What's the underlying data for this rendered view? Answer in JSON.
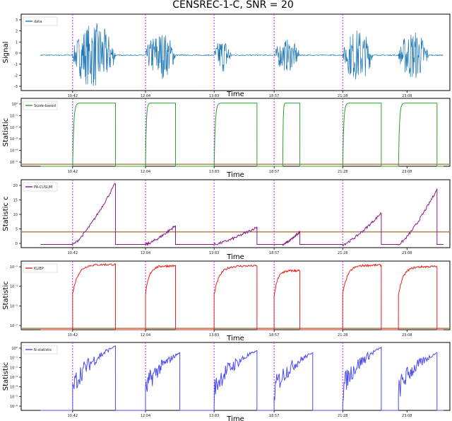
{
  "figure": {
    "title": "CENSREC-1-C, SNR = 20"
  },
  "colors": {
    "signal": "#1f77b4",
    "score": "#2ca02c",
    "cusum": "#8b1a89",
    "kliep": "#e8211c",
    "stat": "#4b4bf0",
    "threshold": "#b08a5a",
    "changepoint": "#b026ff"
  },
  "chart_data": [
    {
      "type": "line",
      "xlabel": "Time",
      "ylabel": "Signal",
      "xticks": [
        "10:42",
        "12:04",
        "13:83",
        "18:57",
        "21:28",
        "23:08"
      ],
      "yticks": [
        "3",
        "2",
        "1",
        "0",
        "-1",
        "-2",
        "-3"
      ],
      "ylim": [
        -3.5,
        3.5
      ],
      "legend": [
        "data"
      ],
      "legend_position": "top-left",
      "changepoints": [
        0.12,
        0.29,
        0.45,
        0.59,
        0.75
      ],
      "series": [
        {
          "name": "data",
          "bursts": [
            {
              "start": 0.12,
              "end": 0.22,
              "amplitude": 3.0
            },
            {
              "start": 0.29,
              "end": 0.36,
              "amplitude": 2.2
            },
            {
              "start": 0.45,
              "end": 0.49,
              "amplitude": 1.6
            },
            {
              "start": 0.59,
              "end": 0.65,
              "amplitude": 1.5
            },
            {
              "start": 0.75,
              "end": 0.82,
              "amplitude": 2.4
            },
            {
              "start": 0.88,
              "end": 0.95,
              "amplitude": 2.3
            }
          ]
        }
      ]
    },
    {
      "type": "line",
      "xlabel": "Time",
      "ylabel": "Statistic",
      "xticks": [
        "10:42",
        "12:04",
        "13:83",
        "18:57",
        "21:28",
        "23:08"
      ],
      "yticks": [
        "10⁰",
        "10⁻¹",
        "10⁻²",
        "10⁻³",
        "10⁻⁴",
        "10⁻⁵"
      ],
      "legend": [
        "Score-based"
      ],
      "legend_position": "top-left",
      "threshold": 0.03,
      "changepoints": [
        0.12,
        0.29,
        0.45,
        0.59,
        0.75
      ],
      "series": [
        {
          "name": "Score-based",
          "segments": [
            {
              "start": 0.12,
              "end": 0.22,
              "level": 0.93
            },
            {
              "start": 0.29,
              "end": 0.36,
              "level": 0.93
            },
            {
              "start": 0.45,
              "end": 0.55,
              "level": 0.93
            },
            {
              "start": 0.61,
              "end": 0.65,
              "level": 0.93
            },
            {
              "start": 0.75,
              "end": 0.84,
              "level": 0.93
            },
            {
              "start": 0.88,
              "end": 0.97,
              "level": 0.93
            }
          ]
        }
      ]
    },
    {
      "type": "line",
      "xlabel": "Time",
      "ylabel": "Statistic c",
      "xticks": [
        "10:42",
        "12:04",
        "13:83",
        "18:57",
        "21:28",
        "23:08"
      ],
      "yticks": [
        "20",
        "15",
        "10",
        "5",
        "0"
      ],
      "ylim": [
        -1,
        20.5
      ],
      "legend": [
        "PA-CUSUM"
      ],
      "legend_position": "top-left",
      "threshold": 4,
      "changepoints": [
        0.12,
        0.29,
        0.45,
        0.59,
        0.75
      ],
      "series": [
        {
          "name": "PA-CUSUM",
          "segments": [
            {
              "start": 0.12,
              "end": 0.22,
              "peak": 19.5
            },
            {
              "start": 0.29,
              "end": 0.36,
              "peak": 6.0
            },
            {
              "start": 0.45,
              "end": 0.55,
              "peak": 5.5
            },
            {
              "start": 0.61,
              "end": 0.65,
              "peak": 4.0
            },
            {
              "start": 0.75,
              "end": 0.84,
              "peak": 10.0
            },
            {
              "start": 0.88,
              "end": 0.97,
              "peak": 17.5
            }
          ]
        }
      ]
    },
    {
      "type": "line",
      "xlabel": "Time",
      "ylabel": "Statistic",
      "xticks": [
        "10:42",
        "12:04",
        "13:83",
        "18:57",
        "21:28",
        "23:08"
      ],
      "yticks": [
        "10⁻¹",
        "10⁻³",
        "10⁻⁵",
        "10⁻⁷"
      ],
      "legend": [
        "KLIEP"
      ],
      "legend_position": "top-left",
      "threshold": 0.02,
      "changepoints": [
        0.12,
        0.29,
        0.45,
        0.59,
        0.75
      ],
      "series": [
        {
          "name": "KLIEP",
          "segments": [
            {
              "start": 0.12,
              "end": 0.22,
              "level": 0.95
            },
            {
              "start": 0.29,
              "end": 0.36,
              "level": 0.93
            },
            {
              "start": 0.45,
              "end": 0.55,
              "level": 0.93
            },
            {
              "start": 0.59,
              "end": 0.65,
              "level": 0.86
            },
            {
              "start": 0.75,
              "end": 0.84,
              "level": 0.94
            },
            {
              "start": 0.88,
              "end": 0.97,
              "level": 0.92
            }
          ]
        }
      ]
    },
    {
      "type": "line",
      "xlabel": "Time",
      "ylabel": "Statistic",
      "xticks": [
        "10:42",
        "12:04",
        "13:83",
        "18:57",
        "21:28",
        "23:08"
      ],
      "yticks": [
        "10⁰",
        "10⁻¹",
        "10⁻²",
        "10⁻³",
        "10⁻⁴",
        "10⁻⁵",
        "10⁻⁶"
      ],
      "legend": [
        "N-statistic"
      ],
      "legend_position": "top-left",
      "changepoints": [
        0.12,
        0.29,
        0.45,
        0.59,
        0.75
      ],
      "series": [
        {
          "name": "N-statistic",
          "segments": [
            {
              "start": 0.12,
              "end": 0.22,
              "level": 0.95
            },
            {
              "start": 0.29,
              "end": 0.37,
              "level": 0.85
            },
            {
              "start": 0.45,
              "end": 0.55,
              "level": 0.88
            },
            {
              "start": 0.59,
              "end": 0.68,
              "level": 0.85
            },
            {
              "start": 0.75,
              "end": 0.84,
              "level": 0.93
            },
            {
              "start": 0.88,
              "end": 0.97,
              "level": 0.85
            }
          ]
        }
      ]
    }
  ]
}
